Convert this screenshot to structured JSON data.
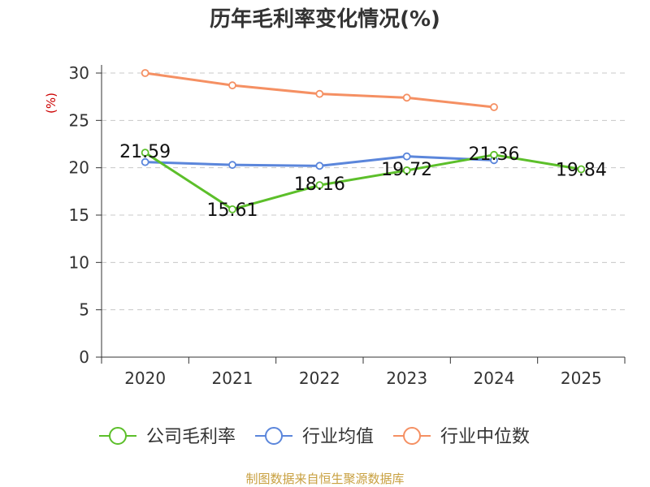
{
  "title": "历年毛利率变化情况(%)",
  "source": "制图数据来自恒生聚源数据库",
  "chart_data": {
    "type": "line",
    "title": "历年毛利率变化情况(%)",
    "ylabel": "(%)",
    "ylim": [
      0,
      30
    ],
    "yticks": [
      0,
      5,
      10,
      15,
      20,
      25,
      30
    ],
    "categories": [
      "2020",
      "2021",
      "2022",
      "2023",
      "2024",
      "2025"
    ],
    "grid": true,
    "legend_position": "bottom",
    "series": [
      {
        "name": "公司毛利率",
        "color": "#5cbf2a",
        "values": [
          21.59,
          15.61,
          18.16,
          19.72,
          21.36,
          19.84
        ],
        "show_labels": true
      },
      {
        "name": "行业均值",
        "color": "#5b86db",
        "values": [
          20.6,
          20.3,
          20.2,
          21.2,
          20.8,
          null
        ],
        "show_labels": false
      },
      {
        "name": "行业中位数",
        "color": "#f59063",
        "values": [
          30.0,
          28.7,
          27.8,
          27.4,
          26.4,
          null
        ],
        "show_labels": false
      }
    ]
  }
}
